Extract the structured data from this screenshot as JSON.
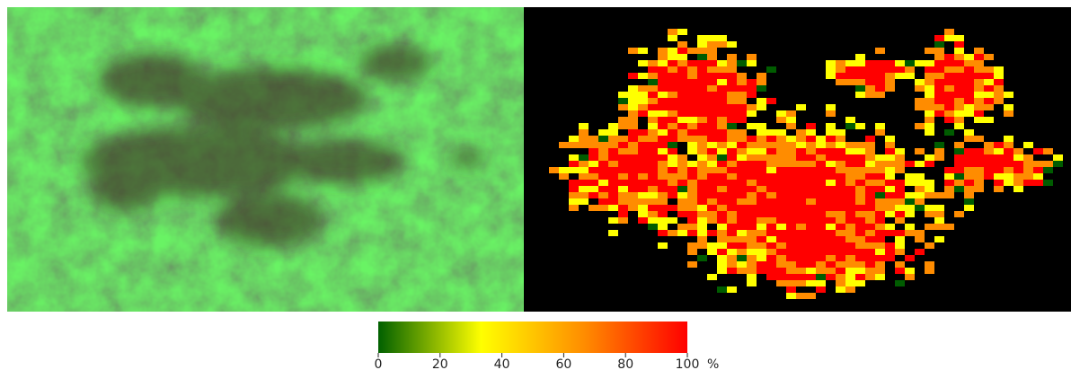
{
  "colorbar": {
    "lim": [
      0,
      100
    ],
    "ticks": [
      0,
      20,
      40,
      60,
      80,
      100
    ],
    "unit": "%",
    "colors": [
      "#006000",
      "#ffff00",
      "#ff8c00",
      "#ff0000"
    ]
  }
}
